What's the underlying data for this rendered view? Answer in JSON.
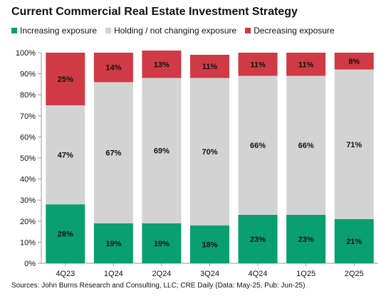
{
  "chart_data": {
    "type": "bar",
    "stacked": true,
    "title": "Current Commercial Real Estate Investment Strategy",
    "categories": [
      "4Q23",
      "1Q24",
      "2Q24",
      "3Q24",
      "4Q24",
      "1Q25",
      "2Q25"
    ],
    "series": [
      {
        "name": "Increasing exposure",
        "color": "#0a9f6e",
        "values": [
          28,
          19,
          19,
          18,
          23,
          23,
          21
        ]
      },
      {
        "name": "Holding / not changing exposure",
        "color": "#d3d3d3",
        "values": [
          47,
          67,
          69,
          70,
          66,
          66,
          71
        ]
      },
      {
        "name": "Decreasing exposure",
        "color": "#cf3a44",
        "values": [
          25,
          14,
          13,
          11,
          11,
          11,
          8
        ]
      }
    ],
    "data_labels": [
      [
        "28%",
        "19%",
        "19%",
        "18%",
        "23%",
        "23%",
        "21%"
      ],
      [
        "47%",
        "67%",
        "69%",
        "70%",
        "66%",
        "66%",
        "71%"
      ],
      [
        "25%",
        "14%",
        "13%",
        "11%",
        "11%",
        "11%",
        "8%"
      ]
    ],
    "y_ticks": [
      "0%",
      "10%",
      "20%",
      "30%",
      "40%",
      "50%",
      "60%",
      "70%",
      "80%",
      "90%",
      "100%"
    ],
    "ylim": [
      0,
      100
    ],
    "grid": false,
    "legend_position": "top-left",
    "xlabel": "",
    "ylabel": ""
  },
  "source": "Sources: John Burns Research and Consulting, LLC; CRE Daily (Data: May-25, Pub: Jun-25)"
}
